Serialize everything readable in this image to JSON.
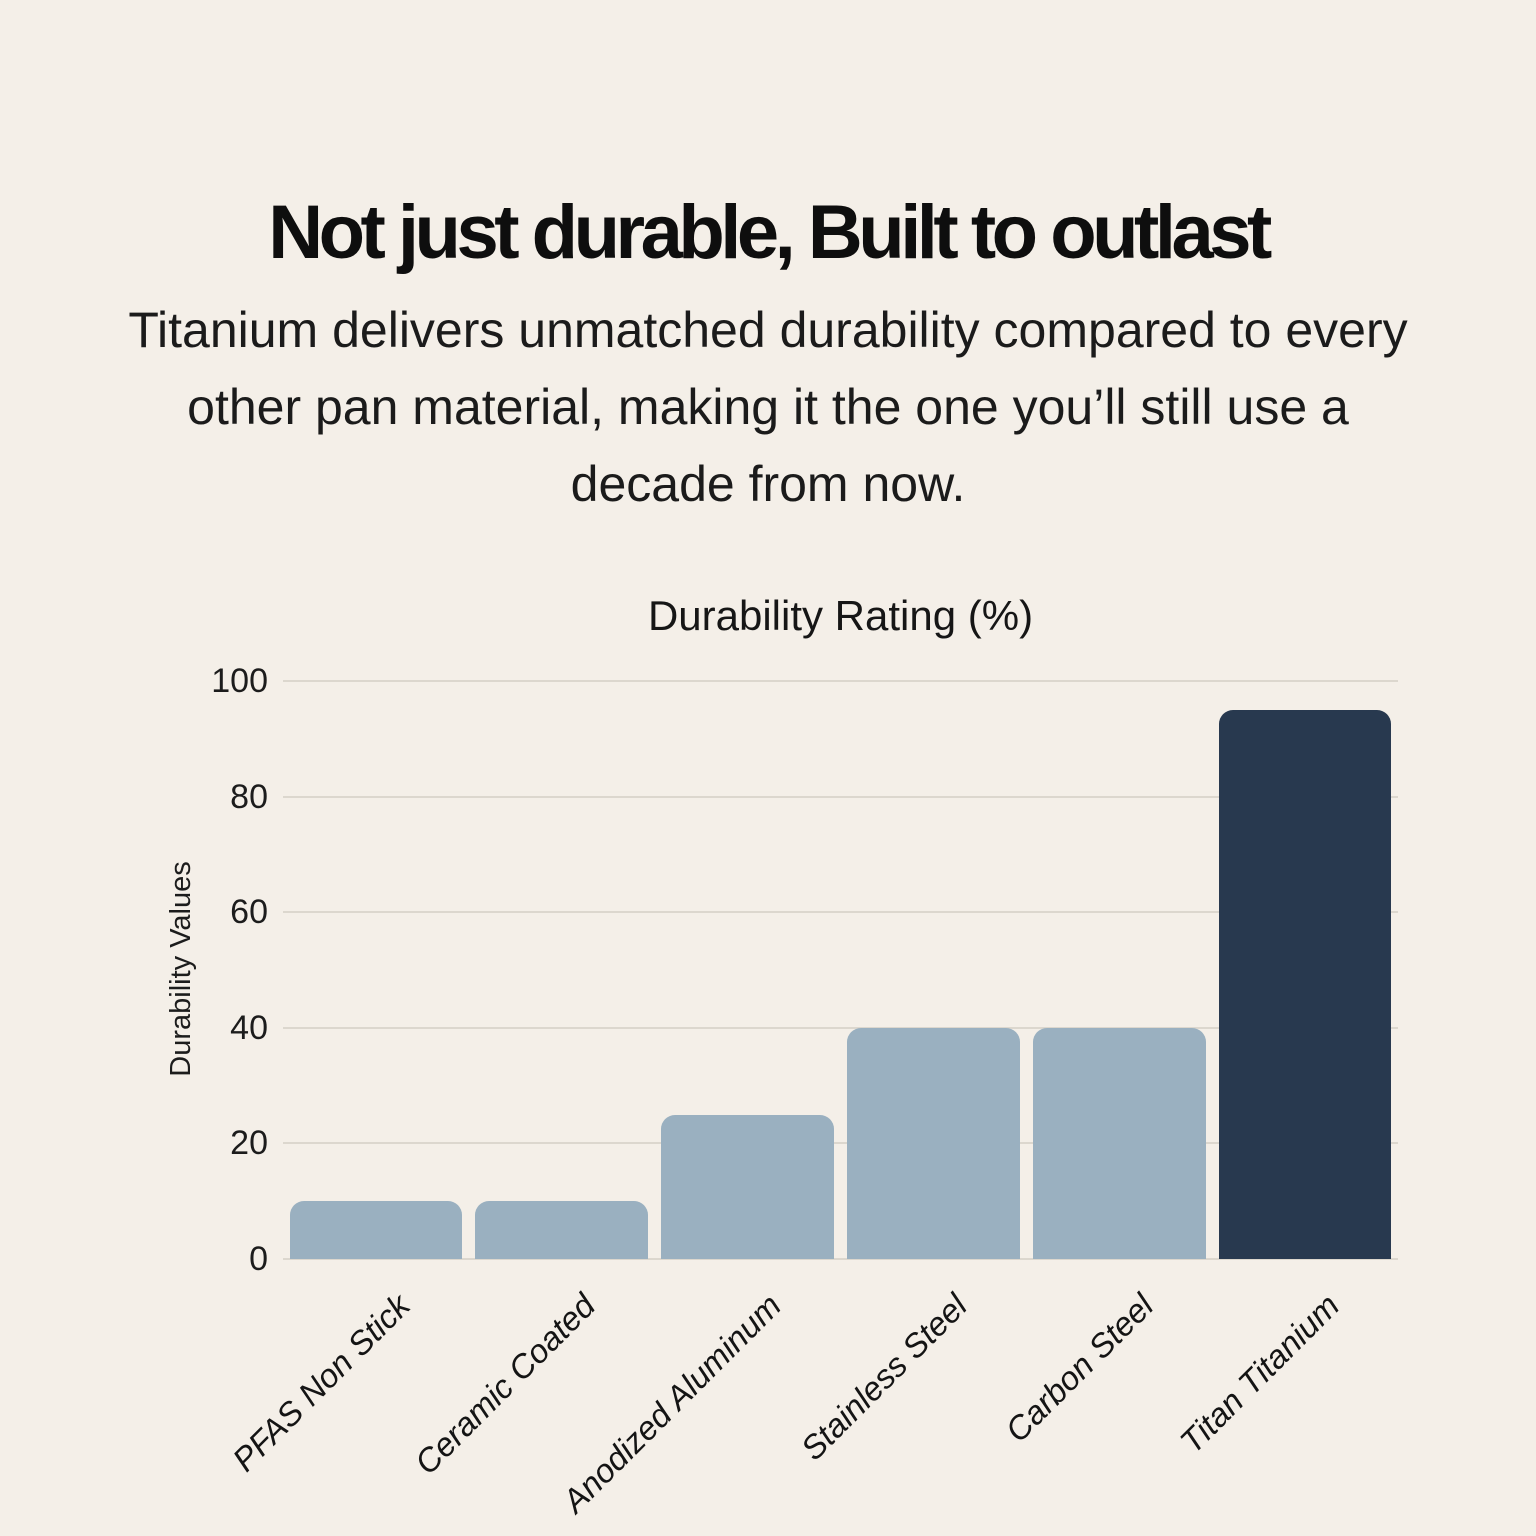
{
  "page": {
    "background_color": "#f4efe8",
    "text_color": "#141414"
  },
  "header": {
    "title": "Not just durable, Built to outlast",
    "subtitle": "Titanium delivers unmatched durability compared to every other pan material, making it the one you’ll still use a decade from now.",
    "subtitle_lines": [
      "Titanium delivers unmatched durability compared to every",
      "other pan material, making it the one you’ll still use a",
      "decade from now."
    ]
  },
  "chart_data": {
    "type": "bar",
    "title": "Durability Rating (%)",
    "xlabel": "",
    "ylabel": "Durability Values",
    "categories": [
      "PFAS Non Stick",
      "Ceramic Coated",
      "Anodized Aluminum",
      "Stainless Steel",
      "Carbon Steel",
      "Titan Titanium"
    ],
    "values": [
      10,
      10,
      25,
      40,
      40,
      95
    ],
    "ylim": [
      0,
      100
    ],
    "yticks": [
      0,
      20,
      40,
      60,
      80,
      100
    ],
    "grid": true,
    "legend": false,
    "x_label_rotation_deg": -45,
    "bar_color_default": "#9ab0c0",
    "bar_color_highlight": "#28394f",
    "highlight_category": "Titan Titanium",
    "gridline_color": "#dcd7ce"
  }
}
